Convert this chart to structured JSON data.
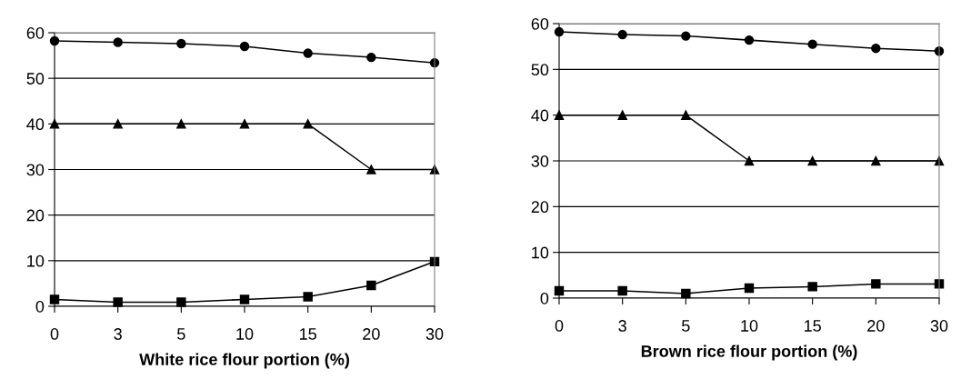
{
  "chart_data": [
    {
      "type": "line",
      "xlabel": "White rice flour portion (%)",
      "categories": [
        "0",
        "3",
        "5",
        "10",
        "15",
        "20",
        "30"
      ],
      "ylim": [
        0,
        60
      ],
      "yticks": [
        0,
        10,
        20,
        30,
        40,
        50,
        60
      ],
      "grid": "y",
      "series": [
        {
          "color": "#000000",
          "marker": "circle",
          "values": [
            58.2,
            57.9,
            57.6,
            57.0,
            55.5,
            54.6,
            53.4
          ]
        },
        {
          "color": "#000000",
          "marker": "triangle",
          "values": [
            40,
            40,
            40,
            40,
            40,
            30,
            30
          ]
        },
        {
          "color": "#000000",
          "marker": "square",
          "values": [
            1.5,
            0.9,
            0.9,
            1.5,
            2.1,
            4.6,
            9.8
          ]
        }
      ]
    },
    {
      "type": "line",
      "xlabel": "Brown rice flour portion (%)",
      "categories": [
        "0",
        "3",
        "5",
        "10",
        "15",
        "20",
        "30"
      ],
      "ylim": [
        0,
        60
      ],
      "yticks": [
        0,
        10,
        20,
        30,
        40,
        50,
        60
      ],
      "grid": "y",
      "series": [
        {
          "color": "#000000",
          "marker": "circle",
          "values": [
            58.2,
            57.6,
            57.3,
            56.4,
            55.5,
            54.6,
            54.0
          ]
        },
        {
          "color": "#000000",
          "marker": "triangle",
          "values": [
            40,
            40,
            40,
            30,
            30,
            30,
            30
          ]
        },
        {
          "color": "#000000",
          "marker": "square",
          "values": [
            1.6,
            1.6,
            1.0,
            2.2,
            2.5,
            3.1,
            3.1
          ]
        }
      ]
    }
  ]
}
